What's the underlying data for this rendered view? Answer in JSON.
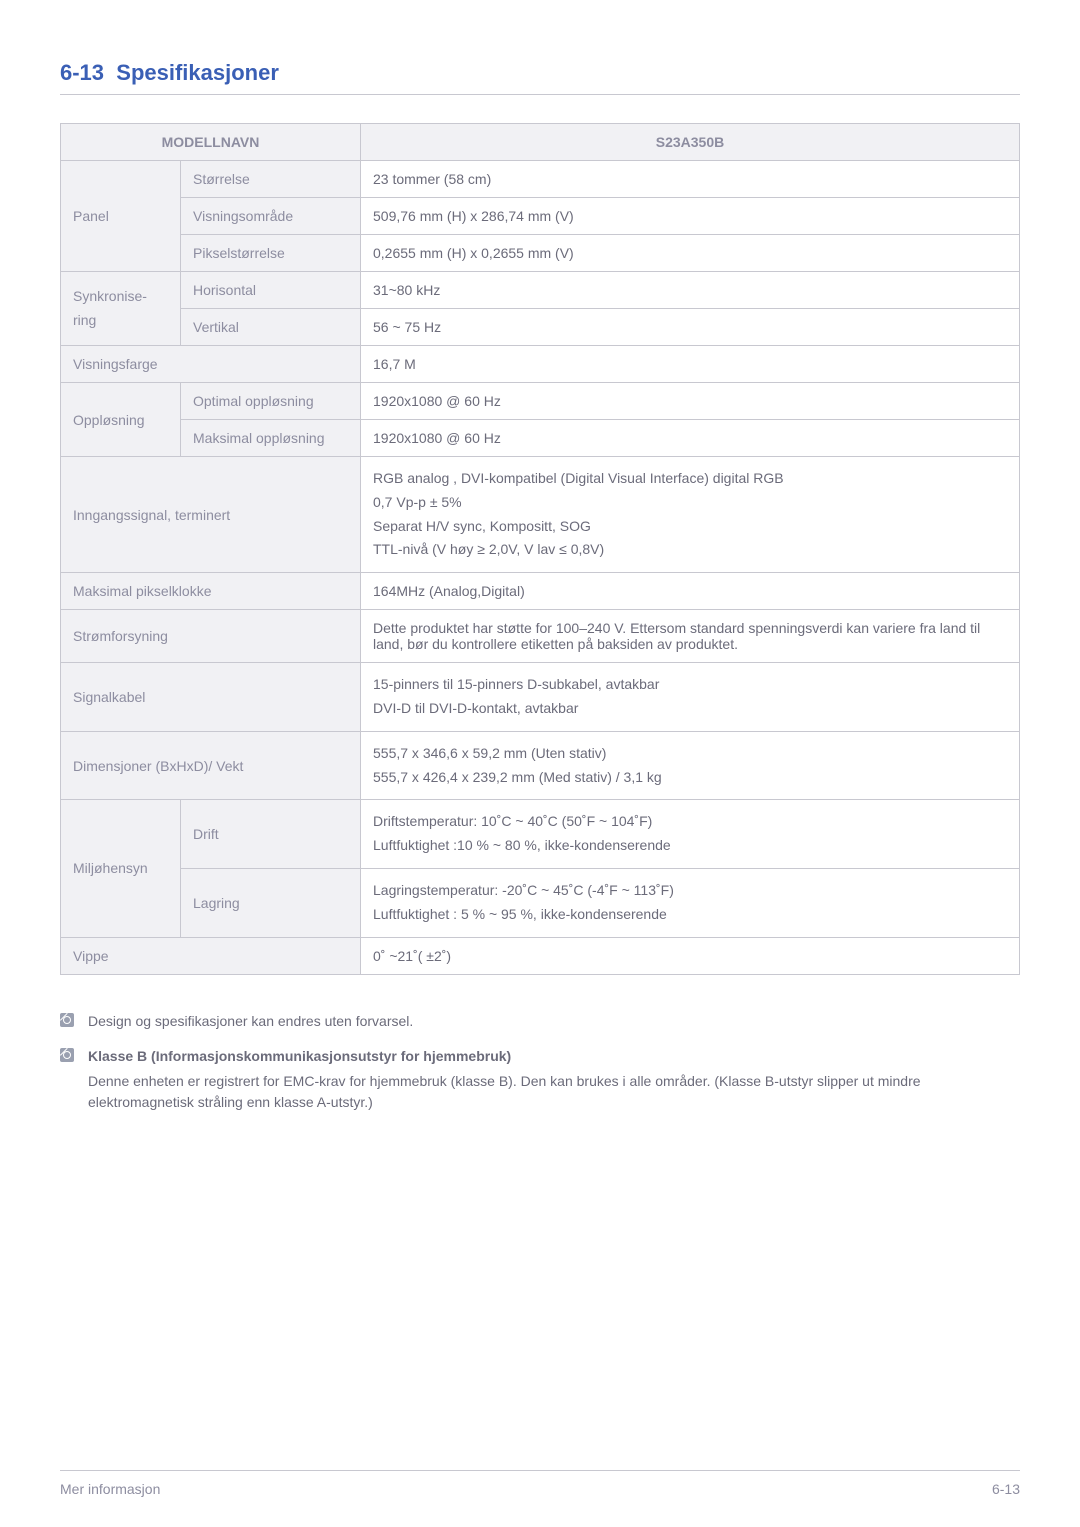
{
  "section_number": "6-13",
  "section_title": "Spesifikasjoner",
  "table": {
    "header_left": "MODELLNAVN",
    "header_right": "S23A350B",
    "rows": {
      "panel_label": "Panel",
      "panel_size_label": "Størrelse",
      "panel_size_value": "23 tommer (58 cm)",
      "panel_area_label": "Visningsområde",
      "panel_area_value": "509,76 mm (H) x 286,74 mm (V)",
      "panel_pixel_label": "Pikselstørrelse",
      "panel_pixel_value": "0,2655 mm (H) x 0,2655 mm (V)",
      "sync_label": "Synkronise-\nring",
      "sync_h_label": "Horisontal",
      "sync_h_value": "31~80 kHz",
      "sync_v_label": "Vertikal",
      "sync_v_value": "56 ~ 75 Hz",
      "color_label": "Visningsfarge",
      "color_value": "16,7 M",
      "res_label": "Oppløsning",
      "res_opt_label": "Optimal oppløsning",
      "res_opt_value": "1920x1080 @ 60 Hz",
      "res_max_label": "Maksimal oppløsning",
      "res_max_value": "1920x1080 @ 60 Hz",
      "input_label": "Inngangssignal, terminert",
      "input_value": "RGB analog , DVI-kompatibel (Digital Visual Interface) digital RGB\n0,7 Vp-p ± 5%\nSeparat H/V sync, Kompositt, SOG\nTTL-nivå (V høy ≥ 2,0V, V lav ≤ 0,8V)",
      "pixclock_label": "Maksimal pikselklokke",
      "pixclock_value": "164MHz (Analog,Digital)",
      "power_label": "Strømforsyning",
      "power_value": "Dette produktet har støtte for 100–240 V. Ettersom standard spenningsverdi kan variere fra land til land, bør du kontrollere etiketten på baksiden av produktet.",
      "cable_label": "Signalkabel",
      "cable_value": "15-pinners til 15-pinners D-subkabel, avtakbar\nDVI-D til DVI-D-kontakt, avtakbar",
      "dim_label": "Dimensjoner (BxHxD)/ Vekt",
      "dim_value": "555,7 x 346,6 x 59,2 mm (Uten stativ)\n555,7 x 426,4 x 239,2 mm (Med stativ) / 3,1 kg",
      "env_label": "Miljøhensyn",
      "env_op_label": "Drift",
      "env_op_value": "Driftstemperatur: 10˚C ~ 40˚C (50˚F ~ 104˚F)\nLuftfuktighet :10 % ~ 80 %, ikke-kondenserende",
      "env_st_label": "Lagring",
      "env_st_value": "Lagringstemperatur: -20˚C ~ 45˚C (-4˚F ~ 113˚F)\nLuftfuktighet : 5 % ~ 95 %, ikke-kondenserende",
      "tilt_label": "Vippe",
      "tilt_value": "0˚ ~21˚( ±2˚)"
    }
  },
  "notes": {
    "note1": "Design og spesifikasjoner kan endres uten forvarsel.",
    "note2_title": "Klasse B (Informasjonskommunikasjonsutstyr for hjemmebruk)",
    "note2_body": "Denne enheten er registrert for EMC-krav for hjemmebruk (klasse B). Den kan brukes i alle områder. (Klasse B-utstyr slipper ut mindre elektromagnetisk stråling enn klasse A-utstyr.)"
  },
  "footer": {
    "left": "Mer informasjon",
    "right": "6-13"
  }
}
